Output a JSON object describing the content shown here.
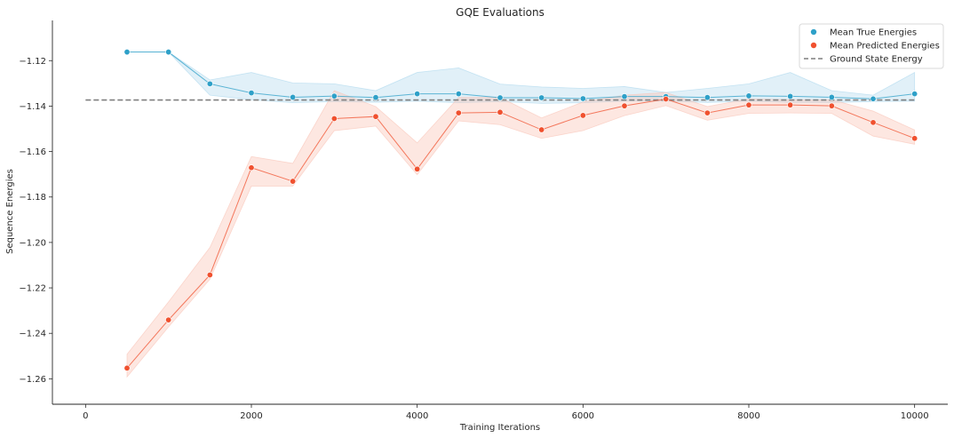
{
  "chart_data": {
    "type": "line",
    "title": "GQE Evaluations",
    "xlabel": "Training Iterations",
    "ylabel": "Sequence Energies",
    "xlim": [
      -400,
      10400
    ],
    "ylim": [
      -1.2712,
      -1.1023
    ],
    "xticks": [
      0,
      2000,
      4000,
      6000,
      8000,
      10000
    ],
    "yticks": [
      -1.26,
      -1.24,
      -1.22,
      -1.2,
      -1.18,
      -1.16,
      -1.14,
      -1.12
    ],
    "legend_position": "top-right",
    "x": [
      500,
      1000,
      1500,
      2000,
      2500,
      3000,
      3500,
      4000,
      4500,
      5000,
      5500,
      6000,
      6500,
      7000,
      7500,
      8000,
      8500,
      9000,
      9500,
      10000
    ],
    "series": [
      {
        "name": "Mean True Energies",
        "marker": "point",
        "color": "#2ea0c8",
        "band_color": "#a9d5ec",
        "values": [
          -1.1162,
          -1.1162,
          -1.1302,
          -1.1342,
          -1.1361,
          -1.1356,
          -1.1362,
          -1.1346,
          -1.1346,
          -1.1363,
          -1.1363,
          -1.1367,
          -1.1358,
          -1.1358,
          -1.1362,
          -1.1355,
          -1.1357,
          -1.1361,
          -1.1368,
          -1.1346
        ],
        "lower": [
          -1.1162,
          -1.1162,
          -1.1352,
          -1.1372,
          -1.1385,
          -1.138,
          -1.1383,
          -1.1378,
          -1.1385,
          -1.138,
          -1.1388,
          -1.1385,
          -1.1378,
          -1.1378,
          -1.1384,
          -1.1378,
          -1.1384,
          -1.1384,
          -1.138,
          -1.1378
        ],
        "upper": [
          -1.1162,
          -1.1162,
          -1.1285,
          -1.1252,
          -1.1298,
          -1.1302,
          -1.1332,
          -1.1252,
          -1.1232,
          -1.1303,
          -1.1316,
          -1.1322,
          -1.1314,
          -1.134,
          -1.1322,
          -1.1302,
          -1.1252,
          -1.1332,
          -1.1352,
          -1.1252
        ]
      },
      {
        "name": "Mean Predicted Energies",
        "marker": "point",
        "color": "#f0512f",
        "band_color": "#f9c2b4",
        "values": [
          -1.2553,
          -1.2341,
          -1.2143,
          -1.1671,
          -1.1731,
          -1.1455,
          -1.1446,
          -1.1677,
          -1.143,
          -1.1427,
          -1.1504,
          -1.1441,
          -1.1399,
          -1.1369,
          -1.143,
          -1.1395,
          -1.1395,
          -1.1399,
          -1.1472,
          -1.1542
        ],
        "lower": [
          -1.2592,
          -1.2372,
          -1.2162,
          -1.1752,
          -1.1752,
          -1.1508,
          -1.1488,
          -1.1702,
          -1.1465,
          -1.1482,
          -1.1542,
          -1.1508,
          -1.1442,
          -1.1398,
          -1.1462,
          -1.1432,
          -1.143,
          -1.1432,
          -1.1532,
          -1.1568
        ],
        "upper": [
          -1.2492,
          -1.2262,
          -1.2022,
          -1.1622,
          -1.1652,
          -1.1332,
          -1.1402,
          -1.1562,
          -1.1362,
          -1.1362,
          -1.1452,
          -1.1382,
          -1.1352,
          -1.134,
          -1.1402,
          -1.1368,
          -1.1372,
          -1.1372,
          -1.1422,
          -1.1505
        ]
      }
    ],
    "reference_line": {
      "name": "Ground State Energy",
      "y": -1.1373,
      "x_range": [
        0,
        10000
      ],
      "color": "#7f7f7f",
      "style": "dashed"
    }
  }
}
